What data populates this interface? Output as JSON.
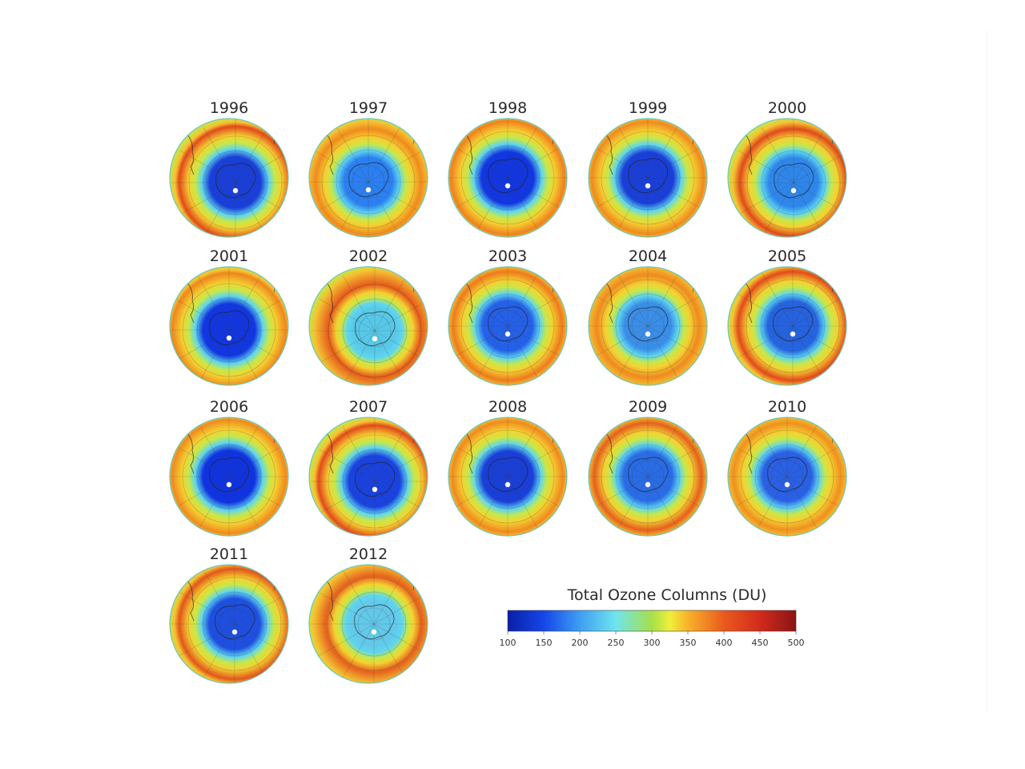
{
  "figure": {
    "panels": [
      {
        "year": "1996",
        "hole_level": 0.95,
        "hole_color": "#1a3fd8",
        "rim_color": "#e24a1c",
        "offset": "down-right"
      },
      {
        "year": "1997",
        "hole_level": 0.75,
        "hole_color": "#2b7ff0",
        "rim_color": "#f08a1e",
        "offset": "down"
      },
      {
        "year": "1998",
        "hole_level": 1.0,
        "hole_color": "#1236e0",
        "rim_color": "#f0801e",
        "offset": "center"
      },
      {
        "year": "1999",
        "hole_level": 0.95,
        "hole_color": "#1a3fd8",
        "rim_color": "#ef8a20",
        "offset": "center"
      },
      {
        "year": "2000",
        "hole_level": 0.8,
        "hole_color": "#2f86ea",
        "rim_color": "#e04a1c",
        "offset": "down-right"
      },
      {
        "year": "2001",
        "hole_level": 1.0,
        "hole_color": "#1236e0",
        "rim_color": "#ee861e",
        "offset": "down"
      },
      {
        "year": "2002",
        "hole_level": 0.35,
        "hole_color": "#58c8e8",
        "rim_color": "#e55a1c",
        "offset": "down-right"
      },
      {
        "year": "2003",
        "hole_level": 0.85,
        "hole_color": "#2560e8",
        "rim_color": "#ee7a1e",
        "offset": "center"
      },
      {
        "year": "2004",
        "hole_level": 0.65,
        "hole_color": "#3a8ee8",
        "rim_color": "#ef8a20",
        "offset": "center"
      },
      {
        "year": "2005",
        "hole_level": 0.85,
        "hole_color": "#2563e0",
        "rim_color": "#e24a1c",
        "offset": "right"
      },
      {
        "year": "2006",
        "hole_level": 1.0,
        "hole_color": "#1033e0",
        "rim_color": "#f08a20",
        "offset": "center"
      },
      {
        "year": "2007",
        "hole_level": 0.95,
        "hole_color": "#1a42de",
        "rim_color": "#e24a1c",
        "offset": "down-right"
      },
      {
        "year": "2008",
        "hole_level": 0.9,
        "hole_color": "#1a3fd8",
        "rim_color": "#f08a20",
        "offset": "center"
      },
      {
        "year": "2009",
        "hole_level": 0.8,
        "hole_color": "#2a6ce6",
        "rim_color": "#e5601e",
        "offset": "center"
      },
      {
        "year": "2010",
        "hole_level": 0.8,
        "hole_color": "#2a60e4",
        "rim_color": "#f09020",
        "offset": "center"
      },
      {
        "year": "2011",
        "hole_level": 0.9,
        "hole_color": "#1e4fe0",
        "rim_color": "#e2561c",
        "offset": "right"
      },
      {
        "year": "2012",
        "hole_level": 0.45,
        "hole_color": "#63c9ea",
        "rim_color": "#e5601e",
        "offset": "right"
      }
    ],
    "legend": {
      "title": "Total Ozone Columns (DU)",
      "min": 100,
      "max": 500,
      "ticks": [
        "100",
        "150",
        "200",
        "250",
        "300",
        "350",
        "400",
        "450",
        "500"
      ],
      "color_stops": [
        {
          "value": 100,
          "color": "#0a1fa8"
        },
        {
          "value": 150,
          "color": "#1546e8"
        },
        {
          "value": 200,
          "color": "#3f9ef2"
        },
        {
          "value": 250,
          "color": "#6fe4ee"
        },
        {
          "value": 300,
          "color": "#a6e04a"
        },
        {
          "value": 325,
          "color": "#f1ee3c"
        },
        {
          "value": 350,
          "color": "#f7b32a"
        },
        {
          "value": 400,
          "color": "#ea5a1d"
        },
        {
          "value": 450,
          "color": "#d22a1c"
        },
        {
          "value": 500,
          "color": "#8a1414"
        }
      ]
    }
  }
}
